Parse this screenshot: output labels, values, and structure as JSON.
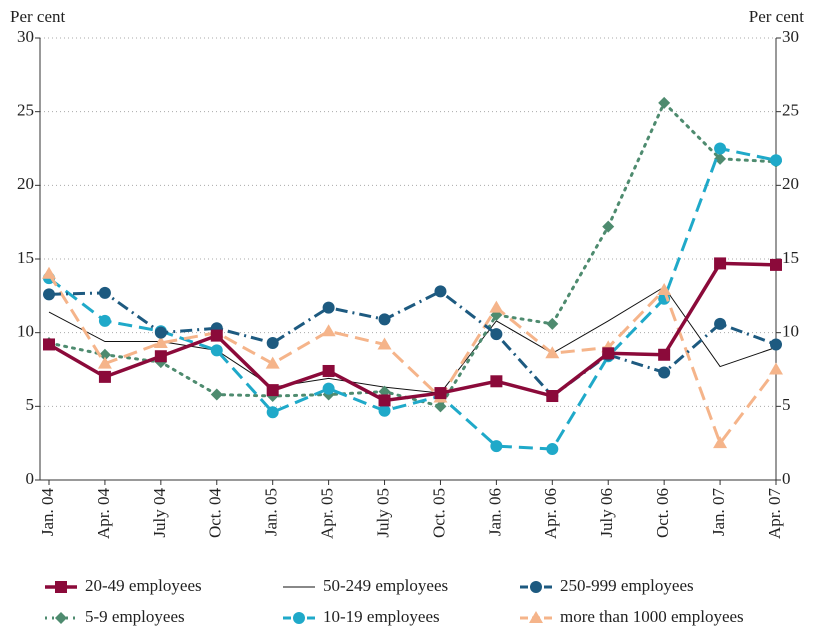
{
  "chart_data": {
    "type": "line",
    "y_label": "Per cent",
    "y2_label": "Per cent",
    "categories": [
      "Jan. 04",
      "Apr. 04",
      "July 04",
      "Oct. 04",
      "Jan. 05",
      "Apr. 05",
      "July 05",
      "Oct. 05",
      "Jan. 06",
      "Apr. 06",
      "July 06",
      "Oct. 06",
      "Jan. 07",
      "Apr. 07"
    ],
    "ylim": [
      0,
      30
    ],
    "yticks": [
      0,
      5,
      10,
      15,
      20,
      25,
      30
    ],
    "y2lim": [
      0,
      30
    ],
    "y2ticks": [
      0,
      5,
      10,
      15,
      20,
      25,
      30
    ],
    "grid": true,
    "series": [
      {
        "name": "20-49 employees",
        "color": "#8b0a3a",
        "linestyle": "solid",
        "linewidth": 3.5,
        "marker": "square",
        "values": [
          9.2,
          7.0,
          8.4,
          9.8,
          6.1,
          7.4,
          5.4,
          5.9,
          6.7,
          5.7,
          8.6,
          8.5,
          14.7,
          14.6
        ]
      },
      {
        "name": "50-249 employees",
        "color": "#111111",
        "linestyle": "solid",
        "linewidth": 1,
        "marker": "none",
        "values": [
          11.4,
          9.4,
          9.4,
          8.8,
          6.3,
          6.9,
          6.3,
          5.9,
          10.8,
          8.6,
          10.8,
          13.1,
          7.7,
          9.0
        ]
      },
      {
        "name": "250-999 employees",
        "color": "#1d5a80",
        "linestyle": "dashdot",
        "linewidth": 3,
        "marker": "circle",
        "values": [
          12.6,
          12.7,
          10.0,
          10.3,
          9.3,
          11.7,
          10.9,
          12.8,
          9.9,
          5.7,
          8.5,
          7.3,
          10.6,
          9.2
        ]
      },
      {
        "name": "5-9 employees",
        "color": "#4e8b6f",
        "linestyle": "dotted",
        "linewidth": 3,
        "marker": "diamond",
        "values": [
          9.3,
          8.5,
          8.0,
          5.8,
          5.7,
          5.8,
          6.0,
          5.0,
          11.2,
          10.6,
          17.2,
          25.6,
          21.8,
          21.6
        ]
      },
      {
        "name": "10-19 employees",
        "color": "#1fa9c9",
        "linestyle": "dashed",
        "linewidth": 3,
        "marker": "circle",
        "values": [
          13.7,
          10.8,
          10.1,
          8.8,
          4.6,
          6.2,
          4.7,
          5.7,
          2.3,
          2.1,
          8.4,
          12.3,
          22.5,
          21.7
        ]
      },
      {
        "name": "more than 1000 employees",
        "color": "#f5b48a",
        "linestyle": "dashed",
        "linewidth": 3,
        "marker": "triangle",
        "values": [
          14.0,
          7.9,
          9.3,
          10.0,
          7.9,
          10.1,
          9.2,
          5.6,
          11.7,
          8.6,
          9.0,
          12.9,
          2.5,
          7.5
        ]
      }
    ]
  }
}
